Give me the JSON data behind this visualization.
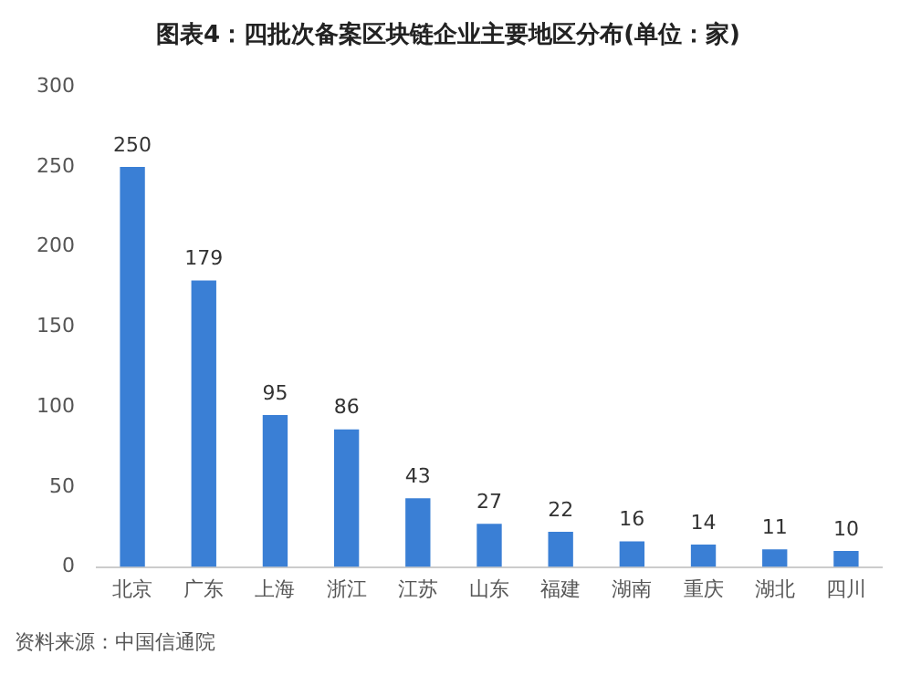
{
  "chart_data": {
    "type": "bar",
    "title": "图表4：四批次备案区块链企业主要地区分布(单位：家)",
    "categories": [
      "北京",
      "广东",
      "上海",
      "浙江",
      "江苏",
      "山东",
      "福建",
      "湖南",
      "重庆",
      "湖北",
      "四川"
    ],
    "values": [
      250,
      179,
      95,
      86,
      43,
      27,
      22,
      16,
      14,
      11,
      10
    ],
    "color": "#3a7fd5",
    "ylim": [
      0,
      300
    ],
    "yticks": [
      0,
      50,
      100,
      150,
      200,
      250,
      300
    ],
    "grid": false,
    "data_labels": true,
    "annotations": [
      "资料来源：中国信通院"
    ]
  }
}
